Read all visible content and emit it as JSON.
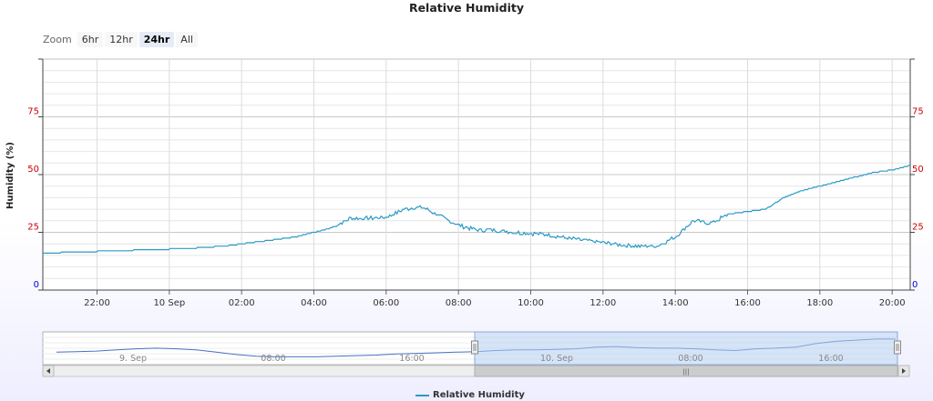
{
  "title": "Relative Humidity",
  "zoom": {
    "label": "Zoom",
    "buttons": [
      "6hr",
      "12hr",
      "24hr",
      "All"
    ],
    "selected": "24hr"
  },
  "colors": {
    "series": "#2b9ac6",
    "navigator_series": "#4472c4",
    "tick_red": "#cc0000",
    "tick_blue": "#0000cc",
    "navigator_mask": "#b4cdf0"
  },
  "chart_data": {
    "type": "line",
    "title": "Relative Humidity",
    "ylabel": "Humidity (%)",
    "ylim": [
      0,
      100
    ],
    "yticks": [
      0,
      25,
      50,
      75
    ],
    "xlim": [
      "9 Sep 20:30",
      "10 Sep 20:30"
    ],
    "xticks": [
      "22:00",
      "10 Sep",
      "02:00",
      "04:00",
      "06:00",
      "08:00",
      "10:00",
      "12:00",
      "14:00",
      "16:00",
      "18:00",
      "20:00"
    ],
    "grid": true,
    "legend": "bottom-center",
    "series": [
      {
        "name": "Relative Humidity",
        "x": [
          "9 Sep 20:30",
          "9 Sep 21:30",
          "9 Sep 22:30",
          "9 Sep 23:30",
          "10 Sep 00:30",
          "10 Sep 01:30",
          "10 Sep 02:30",
          "10 Sep 03:30",
          "10 Sep 04:00",
          "10 Sep 04:30",
          "10 Sep 05:00",
          "10 Sep 05:30",
          "10 Sep 06:00",
          "10 Sep 06:30",
          "10 Sep 07:00",
          "10 Sep 07:30",
          "10 Sep 08:00",
          "10 Sep 08:30",
          "10 Sep 09:00",
          "10 Sep 09:30",
          "10 Sep 10:00",
          "10 Sep 10:30",
          "10 Sep 11:00",
          "10 Sep 11:30",
          "10 Sep 12:00",
          "10 Sep 12:30",
          "10 Sep 13:00",
          "10 Sep 13:30",
          "10 Sep 14:00",
          "10 Sep 14:30",
          "10 Sep 15:00",
          "10 Sep 15:30",
          "10 Sep 16:00",
          "10 Sep 16:30",
          "10 Sep 17:00",
          "10 Sep 17:30",
          "10 Sep 18:00",
          "10 Sep 18:30",
          "10 Sep 19:00",
          "10 Sep 19:30",
          "10 Sep 20:00",
          "10 Sep 20:30"
        ],
        "y": [
          16,
          16.5,
          17,
          17.5,
          18,
          19,
          21,
          23,
          25,
          27,
          31,
          31,
          31.5,
          35,
          36,
          32,
          28,
          26,
          26,
          25,
          24.5,
          24,
          22.5,
          21.5,
          20.5,
          19.5,
          19,
          19,
          23,
          30,
          29,
          33,
          34,
          35,
          40,
          43,
          45,
          47,
          49,
          51,
          52,
          54
        ]
      }
    ]
  },
  "navigator": {
    "labels": [
      "9. Sep",
      "08:00",
      "16:00",
      "10. Sep",
      "08:00",
      "16:00"
    ],
    "range": [
      "10 Sep 00:00",
      "10 Sep 24:00"
    ],
    "values": [
      24,
      25,
      26,
      28,
      30,
      31,
      30,
      28,
      24,
      20,
      17,
      16,
      16,
      16,
      17,
      18,
      19,
      21,
      22,
      23,
      24,
      25,
      27,
      28,
      28,
      29,
      30,
      33,
      34,
      32,
      31,
      31,
      30,
      28,
      27,
      30,
      31,
      33,
      39,
      43,
      45,
      47,
      47
    ]
  }
}
